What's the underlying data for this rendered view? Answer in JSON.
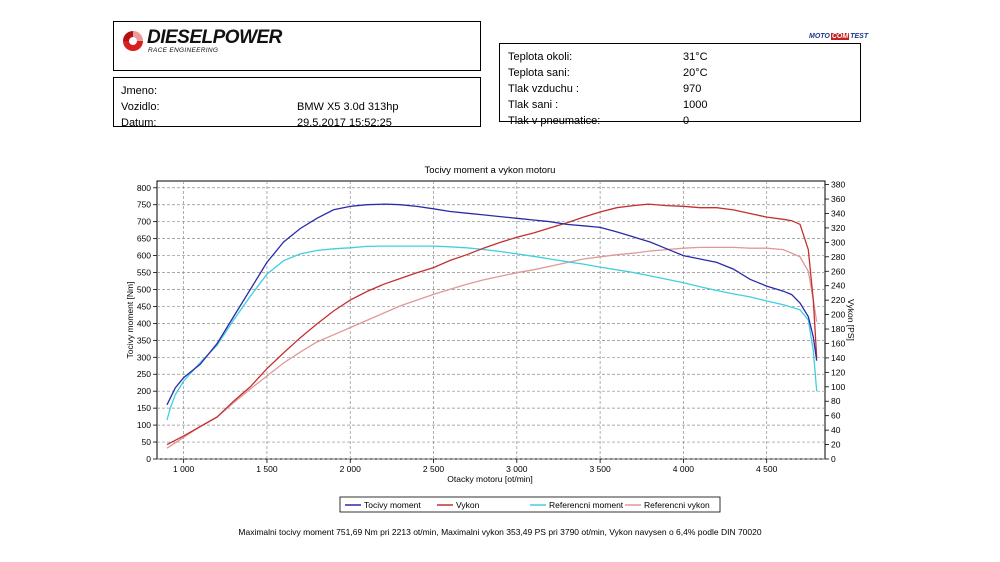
{
  "logo": {
    "name": "DIESELPOWER",
    "tagline": "RACE ENGINEERING"
  },
  "badge": {
    "part1": "MOTO",
    "part2": "COM",
    "part3": "TEST"
  },
  "vehicle": {
    "name_label": "Jmeno:",
    "name_value": "",
    "vehicle_label": "Vozidlo:",
    "vehicle_value": "BMW X5 3.0d 313hp",
    "date_label": "Datum:",
    "date_value": "29.5.2017 15:52:25"
  },
  "conditions": [
    {
      "label": "Teplota okoli:",
      "value": "31°C"
    },
    {
      "label": "Teplota sani:",
      "value": "20°C"
    },
    {
      "label": "Tlak vzduchu :",
      "value": "970"
    },
    {
      "label": "Tlak sani :",
      "value": "1000"
    },
    {
      "label": "Tlak v pneumatice:",
      "value": "0"
    }
  ],
  "footer_text": "Maximalni tocivy moment 751,69 Nm pri 2213 ot/min,  Maximalni vykon 353,49 PS pri 3790 ot/min,  Vykon navysen o 6,4% podle DIN 70020",
  "colors": {
    "torque": "#2b2ba8",
    "power": "#c43030",
    "ref_torque": "#40d0dc",
    "ref_power": "#e09898"
  },
  "chart_data": {
    "type": "line",
    "title": "Tocivy moment a vykon motoru",
    "xlabel": "Otacky motoru [ot/min]",
    "ylabel": "Tocivy moment [Nm]",
    "y2label": "Vykon [PS]",
    "xlim": [
      840,
      4850
    ],
    "ylim": [
      0,
      820
    ],
    "y2lim": [
      0,
      385
    ],
    "x_ticks": [
      1000,
      1500,
      2000,
      2500,
      3000,
      3500,
      4000,
      4500
    ],
    "x_tick_labels": [
      "1 000",
      "1 500",
      "2 000",
      "2 500",
      "3 000",
      "3 500",
      "4 000",
      "4 500"
    ],
    "y_ticks": [
      0,
      50,
      100,
      150,
      200,
      250,
      300,
      350,
      400,
      450,
      500,
      550,
      600,
      650,
      700,
      750,
      800
    ],
    "y2_ticks": [
      0,
      20,
      40,
      60,
      80,
      100,
      120,
      140,
      160,
      180,
      200,
      220,
      240,
      260,
      280,
      300,
      320,
      340,
      360,
      380
    ],
    "grid": true,
    "legend_position": "bottom",
    "series": [
      {
        "name": "Tocivy moment",
        "axis": "left",
        "x": [
          900,
          950,
          1000,
          1100,
          1200,
          1300,
          1400,
          1500,
          1600,
          1700,
          1800,
          1900,
          2000,
          2100,
          2213,
          2300,
          2400,
          2500,
          2600,
          2700,
          2800,
          2900,
          3000,
          3100,
          3200,
          3300,
          3400,
          3500,
          3600,
          3700,
          3800,
          3900,
          4000,
          4100,
          4200,
          4300,
          4400,
          4500,
          4600,
          4650,
          4700,
          4750,
          4780,
          4800
        ],
        "values": [
          160,
          210,
          240,
          280,
          340,
          420,
          500,
          580,
          640,
          680,
          710,
          735,
          745,
          750,
          752,
          750,
          745,
          738,
          730,
          725,
          720,
          715,
          710,
          705,
          700,
          692,
          688,
          683,
          670,
          655,
          640,
          620,
          600,
          590,
          580,
          560,
          530,
          510,
          495,
          485,
          460,
          420,
          360,
          290
        ]
      },
      {
        "name": "Vykon",
        "axis": "right",
        "x": [
          900,
          1000,
          1100,
          1200,
          1300,
          1400,
          1500,
          1600,
          1700,
          1800,
          1900,
          2000,
          2100,
          2200,
          2300,
          2400,
          2500,
          2600,
          2700,
          2800,
          2900,
          3000,
          3100,
          3200,
          3300,
          3400,
          3500,
          3600,
          3700,
          3790,
          3900,
          4000,
          4100,
          4200,
          4300,
          4400,
          4500,
          4600,
          4650,
          4700,
          4750,
          4780,
          4800
        ],
        "values": [
          20,
          32,
          45,
          58,
          80,
          100,
          125,
          147,
          168,
          187,
          205,
          220,
          232,
          242,
          250,
          258,
          265,
          275,
          283,
          292,
          300,
          307,
          313,
          320,
          327,
          335,
          342,
          348,
          351,
          353,
          351,
          350,
          348,
          348,
          345,
          340,
          335,
          332,
          330,
          325,
          290,
          220,
          140
        ]
      },
      {
        "name": "Referencni moment",
        "axis": "left",
        "x": [
          900,
          920,
          950,
          1000,
          1100,
          1200,
          1300,
          1400,
          1500,
          1600,
          1700,
          1800,
          1900,
          2000,
          2100,
          2200,
          2300,
          2400,
          2500,
          2600,
          2700,
          2800,
          2900,
          3000,
          3100,
          3200,
          3300,
          3400,
          3500,
          3600,
          3700,
          3800,
          3900,
          4000,
          4100,
          4200,
          4300,
          4400,
          4500,
          4600,
          4700,
          4750,
          4780,
          4800
        ],
        "values": [
          115,
          150,
          190,
          230,
          285,
          335,
          410,
          480,
          545,
          585,
          605,
          615,
          620,
          623,
          627,
          628,
          628,
          628,
          628,
          626,
          623,
          618,
          612,
          605,
          598,
          590,
          582,
          575,
          566,
          558,
          550,
          540,
          530,
          520,
          508,
          497,
          487,
          478,
          466,
          455,
          440,
          410,
          320,
          200
        ]
      },
      {
        "name": "Referencni vykon",
        "axis": "right",
        "x": [
          900,
          1000,
          1100,
          1200,
          1300,
          1400,
          1500,
          1600,
          1700,
          1800,
          1900,
          2000,
          2100,
          2200,
          2300,
          2400,
          2500,
          2600,
          2700,
          2800,
          2900,
          3000,
          3100,
          3200,
          3300,
          3400,
          3500,
          3600,
          3700,
          3800,
          3900,
          4000,
          4100,
          4200,
          4300,
          4400,
          4500,
          4600,
          4650,
          4700,
          4750,
          4780,
          4800
        ],
        "values": [
          15,
          30,
          45,
          58,
          78,
          97,
          115,
          133,
          148,
          162,
          172,
          182,
          192,
          202,
          212,
          220,
          228,
          235,
          242,
          248,
          253,
          258,
          262,
          267,
          272,
          277,
          280,
          283,
          285,
          288,
          290,
          292,
          293,
          293,
          293,
          292,
          292,
          290,
          285,
          280,
          260,
          220,
          190
        ]
      }
    ]
  }
}
